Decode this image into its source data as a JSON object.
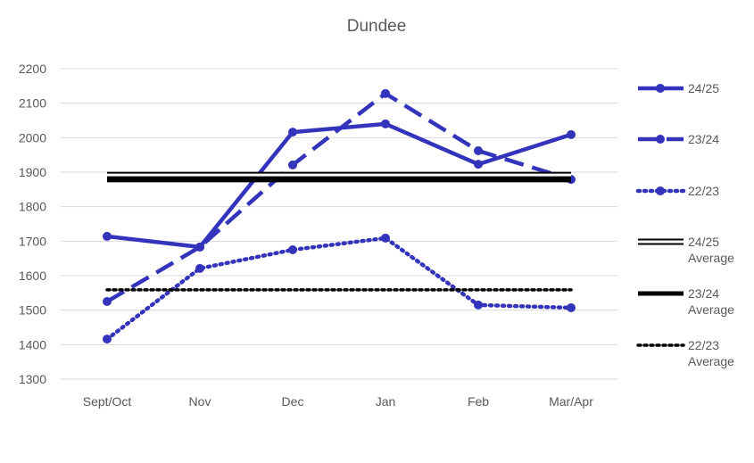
{
  "chart_data": {
    "type": "line",
    "title": "Dundee",
    "xlabel": "",
    "ylabel": "",
    "categories": [
      "Sept/Oct",
      "Nov",
      "Dec",
      "Jan",
      "Feb",
      "Mar/Apr"
    ],
    "ylim": [
      1300,
      2200
    ],
    "yticks": [
      1300,
      1400,
      1500,
      1600,
      1700,
      1800,
      1900,
      2000,
      2100,
      2200
    ],
    "grid": true,
    "legend_position": "right",
    "series": [
      {
        "name": "24/25",
        "style": "solid",
        "color": "#3333BB",
        "values": [
          1714,
          1683,
          2016,
          2040,
          1923,
          2009
        ]
      },
      {
        "name": "23/24",
        "style": "dashed",
        "color": "#3333BB",
        "values": [
          1525,
          1683,
          1921,
          2128,
          1962,
          1879
        ]
      },
      {
        "name": "22/23",
        "style": "dotted",
        "color": "#3333BB",
        "values": [
          1416,
          1621,
          1675,
          1709,
          1515,
          1507
        ]
      },
      {
        "name": "24/25 Average",
        "style": "double",
        "color": "#000000",
        "values": [
          1892,
          1892,
          1892,
          1892,
          1892,
          1892
        ]
      },
      {
        "name": "23/24 Average",
        "style": "solid",
        "color": "#000000",
        "values": [
          1877,
          1877,
          1877,
          1877,
          1877,
          1877
        ]
      },
      {
        "name": "22/23 Average",
        "style": "dotted",
        "color": "#000000",
        "values": [
          1559,
          1559,
          1559,
          1559,
          1559,
          1559
        ]
      }
    ]
  }
}
